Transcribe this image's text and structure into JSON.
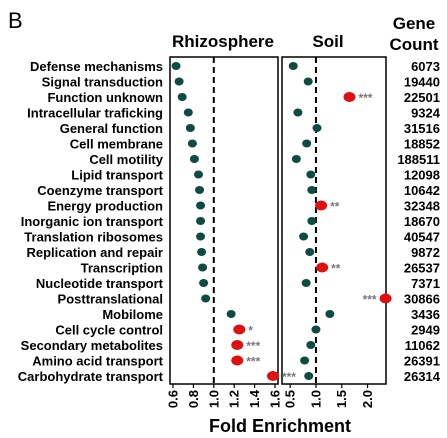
{
  "panel_label": "B",
  "chart_data": {
    "type": "scatter",
    "panels": [
      {
        "title": "Rhizosphere",
        "xticks": [
          "0.6",
          "0.8",
          "1.0",
          "1.2",
          "1.4",
          "1.6"
        ],
        "xlim": [
          0.6,
          1.6
        ]
      },
      {
        "title": "Soil",
        "xticks": [
          "0.5",
          "1.0",
          "1.5",
          "2.0"
        ],
        "xlim": [
          0.4,
          2.3
        ]
      }
    ],
    "xlabel": "Fold Enrichment",
    "gene_count_header": [
      "Gene",
      "Count"
    ],
    "reference_line": 1.0,
    "colors": {
      "normal": "#0e4b43",
      "significant": "#e01010",
      "stars": "#777777"
    },
    "categories": [
      "Defense mechanisms",
      "Signal transduction",
      "Function unknown",
      "Intracellular traficking",
      "General function",
      "Cell membrane",
      "Cell motility",
      "Lipid transport",
      "Coenzyme transport",
      "Energy production",
      "Inorganic ion transport",
      "Translation ribosomes",
      "Replication and repair",
      "Transcription",
      "Nucleotide transport",
      "Posttranslational",
      "Mobilome",
      "Cell cycle control",
      "Secondary metabolites",
      "Amino acid transport",
      "Carbohydrate transport"
    ],
    "gene_counts": [
      "6073",
      "19440",
      "22501",
      "9324",
      "31516",
      "18852",
      "188511",
      "12098",
      "10642",
      "32348",
      "18670",
      "40547",
      "9872",
      "26537",
      "7371",
      "30866",
      "3436",
      "2949",
      "11062",
      "26391",
      "26314"
    ],
    "series": [
      {
        "name": "Rhizosphere",
        "values": [
          0.63,
          0.66,
          0.69,
          0.75,
          0.77,
          0.79,
          0.81,
          0.85,
          0.86,
          0.87,
          0.87,
          0.87,
          0.88,
          0.89,
          0.9,
          0.92,
          1.17,
          1.25,
          1.23,
          1.23,
          1.58
        ],
        "significance": [
          "",
          "",
          "",
          "",
          "",
          "",
          "",
          "",
          "",
          "",
          "",
          "",
          "",
          "",
          "",
          "",
          "",
          "*",
          "***",
          "***",
          "***"
        ]
      },
      {
        "name": "Soil",
        "values": [
          0.56,
          0.85,
          1.65,
          0.65,
          1.02,
          0.82,
          0.62,
          0.9,
          0.92,
          1.1,
          0.92,
          0.76,
          0.88,
          1.12,
          0.81,
          2.35,
          1.27,
          1.0,
          0.9,
          0.78,
          0.86
        ],
        "significance": [
          "",
          "",
          "***",
          "",
          "",
          "",
          "",
          "",
          "",
          "**",
          "",
          "",
          "",
          "**",
          "",
          "***",
          "",
          "",
          "",
          "",
          ""
        ]
      }
    ]
  }
}
